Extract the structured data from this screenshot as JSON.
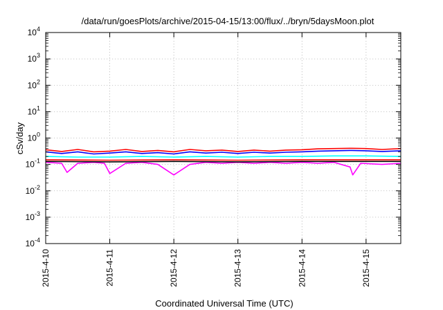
{
  "chart_data": {
    "type": "line",
    "title": "/data/run/goesPlots/archive/2015-04-15/13:00/flux/../bryn/5daysMoon.plot",
    "xlabel": "Coordinated Universal Time (UTC)",
    "ylabel": "cSv/day",
    "y_scale": "log",
    "ylim": [
      0.0001,
      10000
    ],
    "xlim": [
      "2015-04-10 00:00",
      "2015-04-15 13:00"
    ],
    "x_ticks": [
      "2015-4-10",
      "2015-4-11",
      "2015-4-12",
      "2015-4-13",
      "2015-4-14",
      "2015-4-15"
    ],
    "y_ticks": [
      {
        "base": "10",
        "exp": "4"
      },
      {
        "base": "10",
        "exp": "3"
      },
      {
        "base": "10",
        "exp": "2"
      },
      {
        "base": "10",
        "exp": "1"
      },
      {
        "base": "10",
        "exp": "0"
      },
      {
        "base": "10",
        "exp": "-1"
      },
      {
        "base": "10",
        "exp": "-2"
      },
      {
        "base": "10",
        "exp": "-3"
      },
      {
        "base": "10",
        "exp": "-4"
      }
    ],
    "grid": true,
    "legend": "none",
    "series": [
      {
        "color": "#ff00ff",
        "points": [
          {
            "x": "2015-04-10 00:00",
            "y": 0.12
          },
          {
            "x": "2015-04-10 06:00",
            "y": 0.11
          },
          {
            "x": "2015-04-10 08:00",
            "y": 0.05
          },
          {
            "x": "2015-04-10 12:00",
            "y": 0.11
          },
          {
            "x": "2015-04-10 18:00",
            "y": 0.12
          },
          {
            "x": "2015-04-10 22:00",
            "y": 0.11
          },
          {
            "x": "2015-04-11 00:00",
            "y": 0.045
          },
          {
            "x": "2015-04-11 06:00",
            "y": 0.11
          },
          {
            "x": "2015-04-11 12:00",
            "y": 0.12
          },
          {
            "x": "2015-04-11 18:00",
            "y": 0.1
          },
          {
            "x": "2015-04-12 00:00",
            "y": 0.04
          },
          {
            "x": "2015-04-12 06:00",
            "y": 0.1
          },
          {
            "x": "2015-04-12 12:00",
            "y": 0.12
          },
          {
            "x": "2015-04-12 18:00",
            "y": 0.11
          },
          {
            "x": "2015-04-13 00:00",
            "y": 0.12
          },
          {
            "x": "2015-04-13 06:00",
            "y": 0.11
          },
          {
            "x": "2015-04-13 12:00",
            "y": 0.12
          },
          {
            "x": "2015-04-13 18:00",
            "y": 0.11
          },
          {
            "x": "2015-04-14 00:00",
            "y": 0.12
          },
          {
            "x": "2015-04-14 06:00",
            "y": 0.11
          },
          {
            "x": "2015-04-14 12:00",
            "y": 0.12
          },
          {
            "x": "2015-04-14 18:00",
            "y": 0.08
          },
          {
            "x": "2015-04-14 19:00",
            "y": 0.04
          },
          {
            "x": "2015-04-14 22:00",
            "y": 0.11
          },
          {
            "x": "2015-04-15 06:00",
            "y": 0.1
          },
          {
            "x": "2015-04-15 13:00",
            "y": 0.11
          }
        ]
      },
      {
        "color": "#000000",
        "points": [
          {
            "x": "2015-04-10 00:00",
            "y": 0.13
          },
          {
            "x": "2015-04-11 00:00",
            "y": 0.125
          },
          {
            "x": "2015-04-12 00:00",
            "y": 0.13
          },
          {
            "x": "2015-04-13 00:00",
            "y": 0.125
          },
          {
            "x": "2015-04-14 00:00",
            "y": 0.13
          },
          {
            "x": "2015-04-15 00:00",
            "y": 0.13
          },
          {
            "x": "2015-04-15 13:00",
            "y": 0.13
          }
        ]
      },
      {
        "color": "#ff0000",
        "points": [
          {
            "x": "2015-04-10 00:00",
            "y": 0.15
          },
          {
            "x": "2015-04-11 00:00",
            "y": 0.145
          },
          {
            "x": "2015-04-12 00:00",
            "y": 0.15
          },
          {
            "x": "2015-04-13 00:00",
            "y": 0.145
          },
          {
            "x": "2015-04-14 00:00",
            "y": 0.15
          },
          {
            "x": "2015-04-15 00:00",
            "y": 0.15
          },
          {
            "x": "2015-04-15 13:00",
            "y": 0.15
          }
        ]
      },
      {
        "color": "#00ffff",
        "points": [
          {
            "x": "2015-04-10 00:00",
            "y": 0.2
          },
          {
            "x": "2015-04-10 12:00",
            "y": 0.19
          },
          {
            "x": "2015-04-11 00:00",
            "y": 0.19
          },
          {
            "x": "2015-04-11 12:00",
            "y": 0.2
          },
          {
            "x": "2015-04-12 00:00",
            "y": 0.19
          },
          {
            "x": "2015-04-12 12:00",
            "y": 0.2
          },
          {
            "x": "2015-04-13 00:00",
            "y": 0.19
          },
          {
            "x": "2015-04-13 12:00",
            "y": 0.2
          },
          {
            "x": "2015-04-14 00:00",
            "y": 0.2
          },
          {
            "x": "2015-04-14 12:00",
            "y": 0.21
          },
          {
            "x": "2015-04-15 00:00",
            "y": 0.21
          },
          {
            "x": "2015-04-15 13:00",
            "y": 0.2
          }
        ]
      },
      {
        "color": "#0000ff",
        "points": [
          {
            "x": "2015-04-10 00:00",
            "y": 0.3
          },
          {
            "x": "2015-04-10 06:00",
            "y": 0.26
          },
          {
            "x": "2015-04-10 12:00",
            "y": 0.3
          },
          {
            "x": "2015-04-10 18:00",
            "y": 0.25
          },
          {
            "x": "2015-04-11 00:00",
            "y": 0.27
          },
          {
            "x": "2015-04-11 06:00",
            "y": 0.3
          },
          {
            "x": "2015-04-11 12:00",
            "y": 0.26
          },
          {
            "x": "2015-04-11 18:00",
            "y": 0.28
          },
          {
            "x": "2015-04-12 00:00",
            "y": 0.25
          },
          {
            "x": "2015-04-12 06:00",
            "y": 0.3
          },
          {
            "x": "2015-04-12 12:00",
            "y": 0.27
          },
          {
            "x": "2015-04-12 18:00",
            "y": 0.29
          },
          {
            "x": "2015-04-13 00:00",
            "y": 0.26
          },
          {
            "x": "2015-04-13 06:00",
            "y": 0.29
          },
          {
            "x": "2015-04-13 12:00",
            "y": 0.27
          },
          {
            "x": "2015-04-13 18:00",
            "y": 0.29
          },
          {
            "x": "2015-04-14 00:00",
            "y": 0.3
          },
          {
            "x": "2015-04-14 06:00",
            "y": 0.32
          },
          {
            "x": "2015-04-14 12:00",
            "y": 0.33
          },
          {
            "x": "2015-04-14 18:00",
            "y": 0.34
          },
          {
            "x": "2015-04-15 00:00",
            "y": 0.33
          },
          {
            "x": "2015-04-15 06:00",
            "y": 0.31
          },
          {
            "x": "2015-04-15 13:00",
            "y": 0.33
          }
        ]
      },
      {
        "color": "#ff0000",
        "points": [
          {
            "x": "2015-04-10 00:00",
            "y": 0.36
          },
          {
            "x": "2015-04-10 06:00",
            "y": 0.31
          },
          {
            "x": "2015-04-10 12:00",
            "y": 0.37
          },
          {
            "x": "2015-04-10 18:00",
            "y": 0.3
          },
          {
            "x": "2015-04-11 00:00",
            "y": 0.32
          },
          {
            "x": "2015-04-11 06:00",
            "y": 0.37
          },
          {
            "x": "2015-04-11 12:00",
            "y": 0.31
          },
          {
            "x": "2015-04-11 18:00",
            "y": 0.34
          },
          {
            "x": "2015-04-12 00:00",
            "y": 0.3
          },
          {
            "x": "2015-04-12 06:00",
            "y": 0.37
          },
          {
            "x": "2015-04-12 12:00",
            "y": 0.33
          },
          {
            "x": "2015-04-12 18:00",
            "y": 0.35
          },
          {
            "x": "2015-04-13 00:00",
            "y": 0.31
          },
          {
            "x": "2015-04-13 06:00",
            "y": 0.35
          },
          {
            "x": "2015-04-13 12:00",
            "y": 0.32
          },
          {
            "x": "2015-04-13 18:00",
            "y": 0.35
          },
          {
            "x": "2015-04-14 00:00",
            "y": 0.36
          },
          {
            "x": "2015-04-14 06:00",
            "y": 0.39
          },
          {
            "x": "2015-04-14 12:00",
            "y": 0.4
          },
          {
            "x": "2015-04-14 18:00",
            "y": 0.41
          },
          {
            "x": "2015-04-15 00:00",
            "y": 0.4
          },
          {
            "x": "2015-04-15 06:00",
            "y": 0.37
          },
          {
            "x": "2015-04-15 13:00",
            "y": 0.4
          }
        ]
      }
    ]
  }
}
